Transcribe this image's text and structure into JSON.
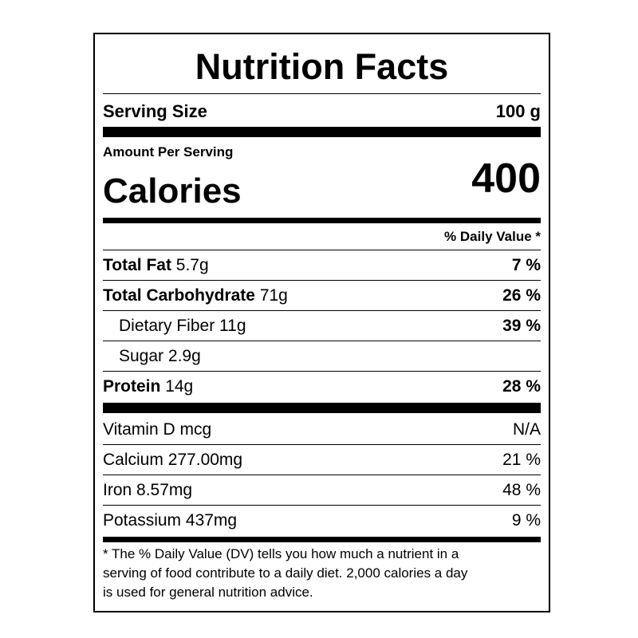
{
  "title": "Nutrition Facts",
  "serving": {
    "label": "Serving Size",
    "value": "100 g"
  },
  "amount_per_serving": "Amount Per Serving",
  "calories": {
    "label": "Calories",
    "value": "400"
  },
  "daily_value_header": "% Daily Value *",
  "nutrients": [
    {
      "name": "Total Fat",
      "amount": "5.7g",
      "dv": "7 %"
    },
    {
      "name": "Total Carbohydrate",
      "amount": "71g",
      "dv": "26 %"
    },
    {
      "name": "Dietary Fiber",
      "amount": "11g",
      "dv": "39 %"
    },
    {
      "name": "Sugar",
      "amount": "2.9g"
    },
    {
      "name": "Protein",
      "amount": "14g",
      "dv": "28 %"
    }
  ],
  "vitamins": [
    {
      "name": "Vitamin D",
      "amount": "mcg",
      "dv": "N/A"
    },
    {
      "name": "Calcium",
      "amount": "277.00mg",
      "dv": "21 %"
    },
    {
      "name": "Iron",
      "amount": "8.57mg",
      "dv": "48 %"
    },
    {
      "name": "Potassium",
      "amount": "437mg",
      "dv": "9 %"
    }
  ],
  "footnote": [
    "* The % Daily Value (DV) tells you how much a nutrient in a",
    "serving of food contribute to a daily diet. 2,000 calories a day",
    "is used for general nutrition advice."
  ]
}
